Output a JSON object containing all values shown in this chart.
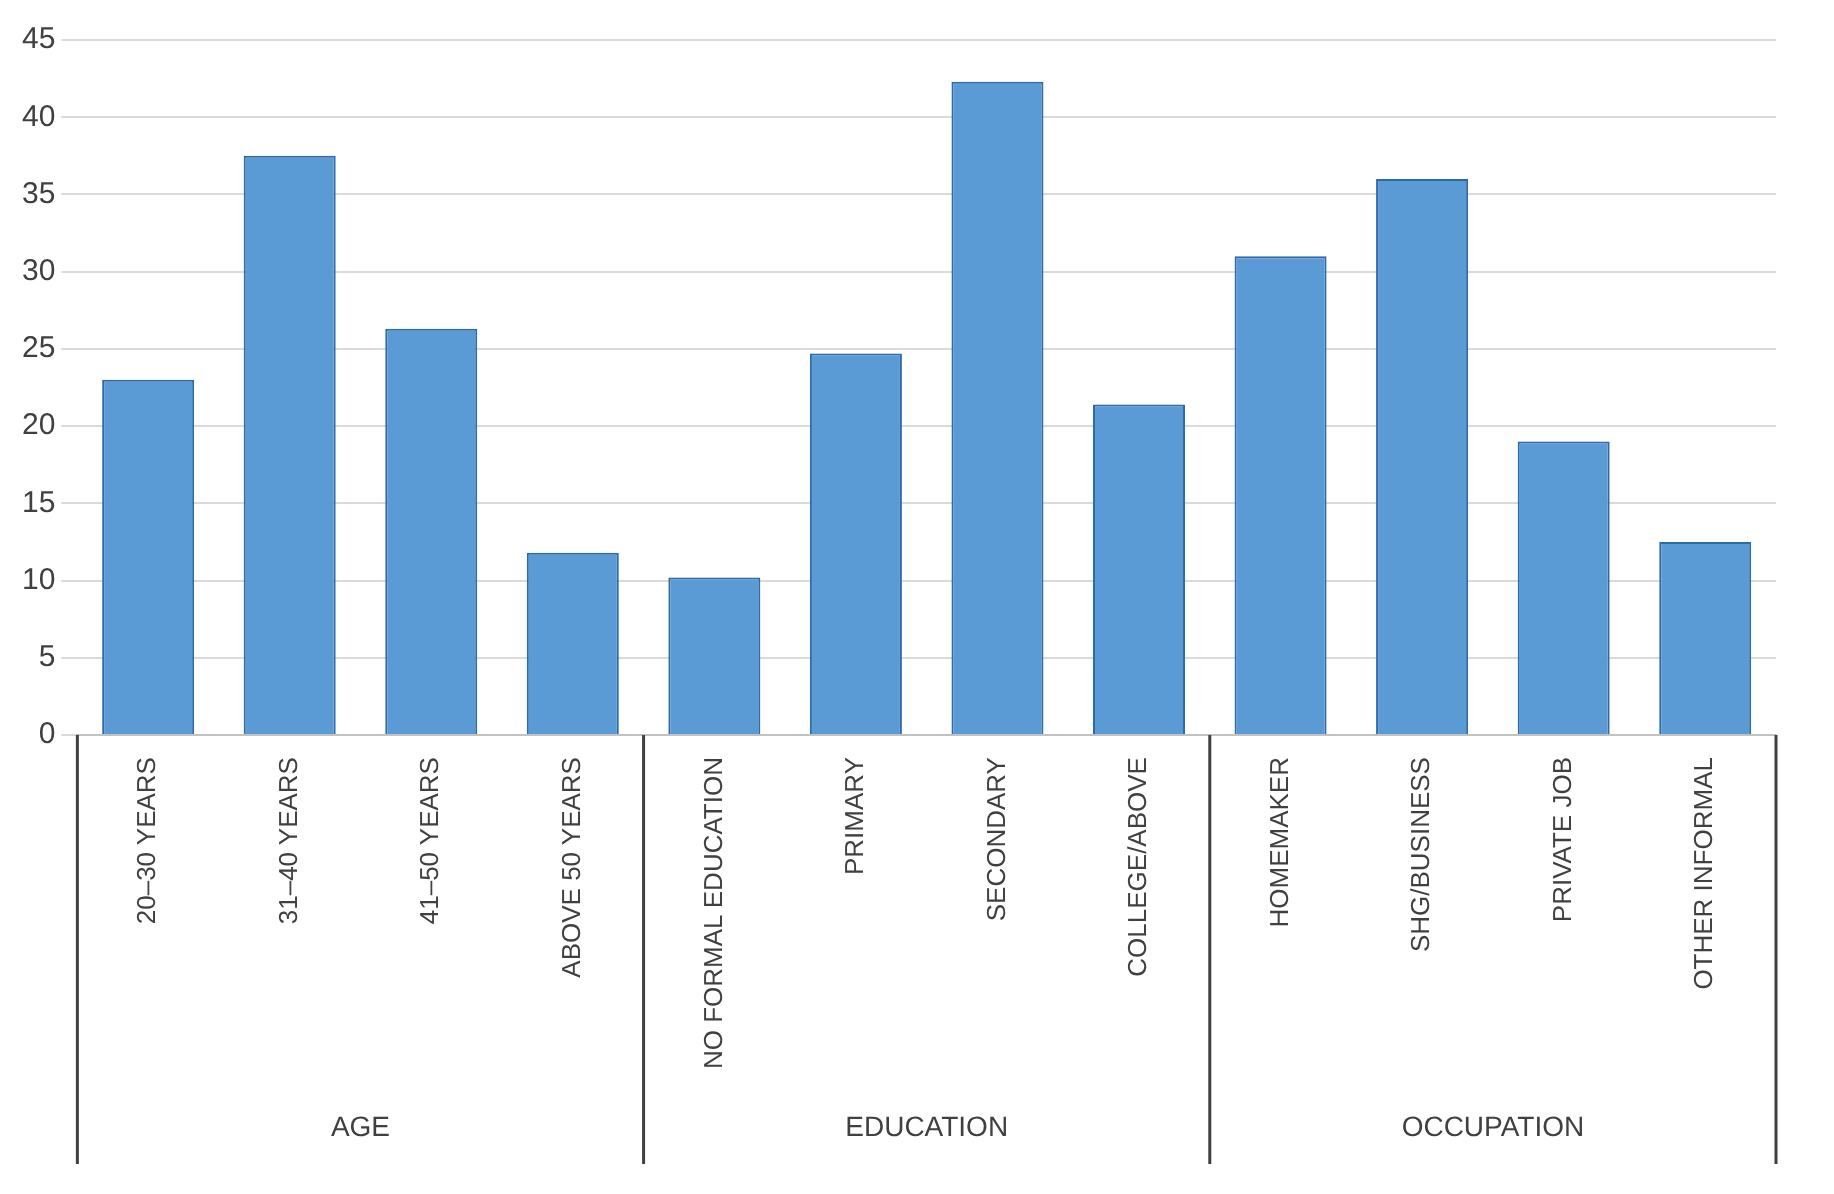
{
  "chart_data": {
    "type": "bar",
    "categories": [
      "20–30 YEARS",
      "31–40 YEARS",
      "41–50 YEARS",
      "ABOVE 50 YEARS",
      "NO FORMAL EDUCATION",
      "PRIMARY",
      "SECONDARY",
      "COLLEGE/ABOVE",
      "HOMEMAKER",
      "SHG/BUSINESS",
      "PRIVATE JOB",
      "OTHER INFORMAL"
    ],
    "values": [
      23,
      37.5,
      26.3,
      11.8,
      10.2,
      24.7,
      42.3,
      21.4,
      31,
      36,
      19,
      12.5
    ],
    "color": "#5b9bd5",
    "ylim": [
      0,
      45
    ],
    "yticks": [
      0,
      5,
      10,
      15,
      20,
      25,
      30,
      35,
      40,
      45
    ],
    "grid": "y",
    "annotations": [
      "AGE",
      "EDUCATION",
      "OCCUPATION"
    ]
  }
}
